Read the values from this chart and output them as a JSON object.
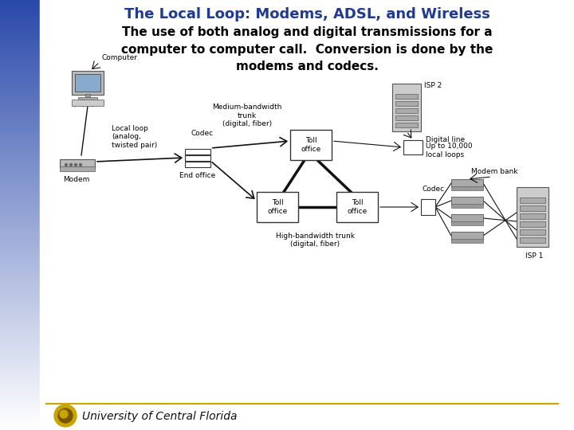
{
  "title": "The Local Loop: Modems, ADSL, and Wireless",
  "title_color": "#1F3A8F",
  "title_fontsize": 13,
  "subtitle": "The use of both analog and digital transmissions for a\ncomputer to computer call.  Conversion is done by the\nmodems and codecs.",
  "subtitle_fontsize": 11,
  "subtitle_color": "#000000",
  "footer_text": "University of Central Florida",
  "footer_color": "#111111",
  "footer_fontsize": 10,
  "line_color": "#000000",
  "sidebar_colors": [
    "#2a4aaa",
    "#ffffff"
  ],
  "labels": {
    "computer": "Computer",
    "local_loop": "Local loop\n(analog,\ntwisted pair)",
    "medium_bw": "Medium-bandwidth\ntrunk\n(digital, fiber)",
    "toll_top": "Toll\noffice",
    "toll_bl": "Toll\noffice",
    "toll_br": "Toll\noffice",
    "end_office": "End office",
    "codec_left": "Codec",
    "high_bw": "High-bandwidth trunk\n(digital, fiber)",
    "digital_line": "Digital line",
    "up_to": "Up to 10,000\nlocal loops",
    "modem_bank": "Modem bank",
    "codec_right": "Codec",
    "isp1": "ISP 1",
    "isp2": "ISP 2",
    "modem": "Modem"
  }
}
